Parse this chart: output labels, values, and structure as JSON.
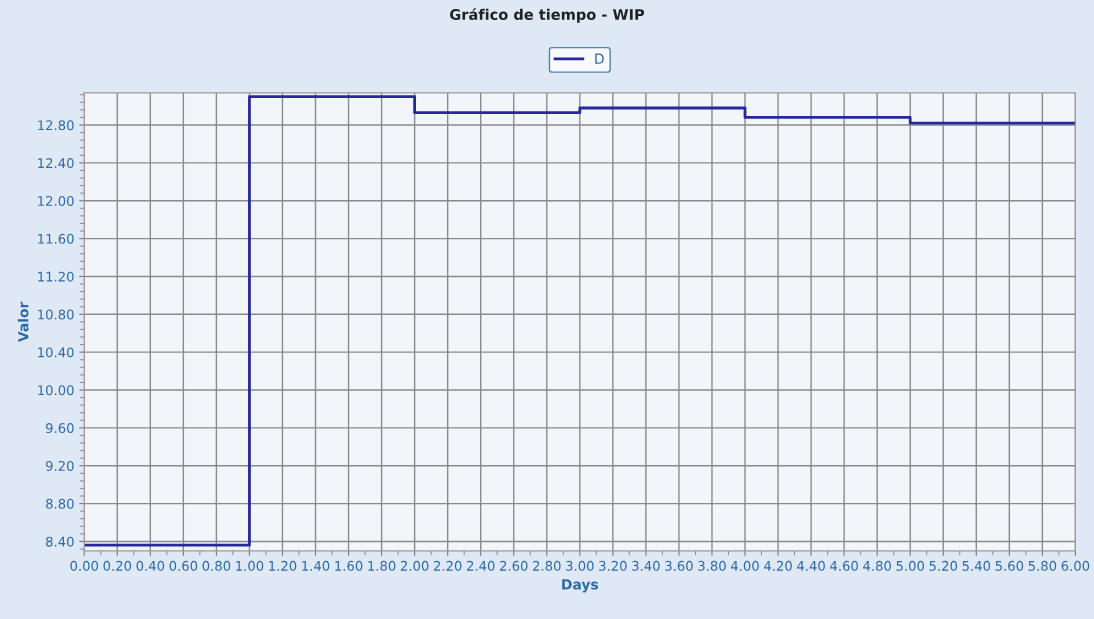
{
  "chart_data": {
    "type": "step",
    "title": "Gráfico de tiempo - WIP",
    "xlabel": "Days",
    "ylabel": "Valor",
    "x": [
      0,
      1,
      2,
      3,
      4,
      5,
      6
    ],
    "series": [
      {
        "name": "D",
        "color": "#28289a",
        "values": [
          8.36,
          13.1,
          12.93,
          12.98,
          12.88,
          12.82,
          12.82
        ]
      }
    ],
    "xlim": [
      0,
      6
    ],
    "ylim": [
      8.3,
      13.14
    ],
    "xticks": [
      {
        "value": 0,
        "label": "0.00"
      },
      {
        "value": 0.2,
        "label": "0.20"
      },
      {
        "value": 0.4,
        "label": "0.40"
      },
      {
        "value": 0.6,
        "label": "0.60"
      },
      {
        "value": 0.8,
        "label": "0.80"
      },
      {
        "value": 1,
        "label": "1.00"
      },
      {
        "value": 1.2,
        "label": "1.20"
      },
      {
        "value": 1.4,
        "label": "1.40"
      },
      {
        "value": 1.6,
        "label": "1.60"
      },
      {
        "value": 1.8,
        "label": "1.80"
      },
      {
        "value": 2,
        "label": "2.00"
      },
      {
        "value": 2.2,
        "label": "2.20"
      },
      {
        "value": 2.4,
        "label": "2.40"
      },
      {
        "value": 2.6,
        "label": "2.60"
      },
      {
        "value": 2.8,
        "label": "2.80"
      },
      {
        "value": 3,
        "label": "3.00"
      },
      {
        "value": 3.2,
        "label": "3.20"
      },
      {
        "value": 3.4,
        "label": "3.40"
      },
      {
        "value": 3.6,
        "label": "3.60"
      },
      {
        "value": 3.8,
        "label": "3.80"
      },
      {
        "value": 4,
        "label": "4.00"
      },
      {
        "value": 4.2,
        "label": "4.20"
      },
      {
        "value": 4.4,
        "label": "4.40"
      },
      {
        "value": 4.6,
        "label": "4.60"
      },
      {
        "value": 4.8,
        "label": "4.80"
      },
      {
        "value": 5,
        "label": "5.00"
      },
      {
        "value": 5.2,
        "label": "5.20"
      },
      {
        "value": 5.4,
        "label": "5.40"
      },
      {
        "value": 5.6,
        "label": "5.60"
      },
      {
        "value": 5.8,
        "label": "5.80"
      },
      {
        "value": 6,
        "label": "6.00"
      }
    ],
    "yticks": [
      {
        "value": 8.4,
        "label": "8.40"
      },
      {
        "value": 8.8,
        "label": "8.80"
      },
      {
        "value": 9.2,
        "label": "9.20"
      },
      {
        "value": 9.6,
        "label": "9.60"
      },
      {
        "value": 10.0,
        "label": "10.00"
      },
      {
        "value": 10.4,
        "label": "10.40"
      },
      {
        "value": 10.8,
        "label": "10.80"
      },
      {
        "value": 11.2,
        "label": "11.20"
      },
      {
        "value": 11.6,
        "label": "11.60"
      },
      {
        "value": 12.0,
        "label": "12.00"
      },
      {
        "value": 12.4,
        "label": "12.40"
      },
      {
        "value": 12.8,
        "label": "12.80"
      }
    ],
    "grid": true,
    "legend": "top",
    "line_style": "solid",
    "marker": "none"
  }
}
